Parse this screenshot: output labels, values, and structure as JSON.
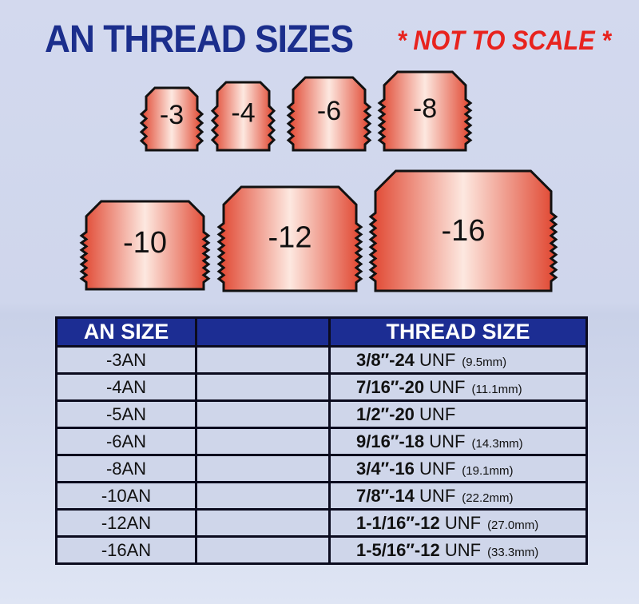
{
  "title": "AN THREAD SIZES",
  "note": "* NOT TO SCALE *",
  "colors": {
    "title": "#1b2e8c",
    "note": "#e8231e",
    "header_bg": "#1c2d93",
    "fitting": "#e8644a"
  },
  "fittings": [
    {
      "label": "-3"
    },
    {
      "label": "-4"
    },
    {
      "label": "-6"
    },
    {
      "label": "-8"
    },
    {
      "label": "-10"
    },
    {
      "label": "-12"
    },
    {
      "label": "-16"
    }
  ],
  "table": {
    "headers": [
      "AN SIZE",
      "",
      "THREAD SIZE"
    ],
    "rows": [
      {
        "an": "-3AN",
        "thread": "3/8″-24",
        "unf": "UNF",
        "mm": "(9.5mm)"
      },
      {
        "an": "-4AN",
        "thread": "7/16″-20",
        "unf": "UNF",
        "mm": "(11.1mm)"
      },
      {
        "an": "-5AN",
        "thread": "1/2″-20",
        "unf": "UNF",
        "mm": ""
      },
      {
        "an": "-6AN",
        "thread": "9/16″-18",
        "unf": "UNF",
        "mm": "(14.3mm)"
      },
      {
        "an": "-8AN",
        "thread": "3/4″-16",
        "unf": "UNF",
        "mm": "(19.1mm)"
      },
      {
        "an": "-10AN",
        "thread": "7/8″-14",
        "unf": "UNF",
        "mm": "(22.2mm)"
      },
      {
        "an": "-12AN",
        "thread": "1-1/16″-12",
        "unf": "UNF",
        "mm": "(27.0mm)"
      },
      {
        "an": "-16AN",
        "thread": "1-5/16″-12",
        "unf": "UNF",
        "mm": "(33.3mm)"
      }
    ]
  }
}
